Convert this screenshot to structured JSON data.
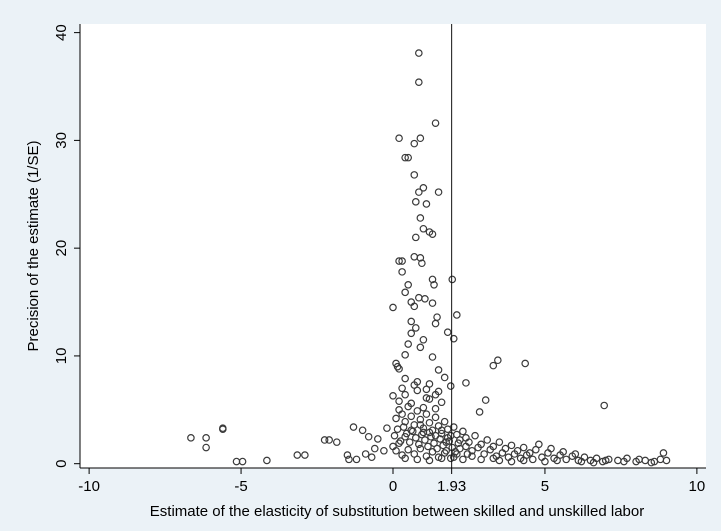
{
  "chart_data": {
    "type": "scatter",
    "xlabel": "Estimate of the elasticity of substitution between skilled and unskilled labor",
    "ylabel": "Precision of the estimate (1/SE)",
    "xlim": [
      -10.3,
      10.3
    ],
    "ylim": [
      -0.4,
      40.8
    ],
    "xticks": [
      {
        "value": -10,
        "label": "-10"
      },
      {
        "value": -5,
        "label": "-5"
      },
      {
        "value": 0,
        "label": "0"
      },
      {
        "value": 1.93,
        "label": "1.93"
      },
      {
        "value": 5,
        "label": "5"
      },
      {
        "value": 10,
        "label": "10"
      }
    ],
    "yticks": [
      {
        "value": 0,
        "label": "0"
      },
      {
        "value": 10,
        "label": "10"
      },
      {
        "value": 20,
        "label": "20"
      },
      {
        "value": 30,
        "label": "30"
      },
      {
        "value": 40,
        "label": "40"
      }
    ],
    "reference_line_x": 1.93,
    "grid": false,
    "legend": "none",
    "series": [
      {
        "marker": "hollow-circle",
        "color": "#3a3a3a",
        "points": [
          [
            0.85,
            38.1
          ],
          [
            0.85,
            35.4
          ],
          [
            1.4,
            31.6
          ],
          [
            0.2,
            30.2
          ],
          [
            0.9,
            30.2
          ],
          [
            0.7,
            29.7
          ],
          [
            0.4,
            28.4
          ],
          [
            0.5,
            28.4
          ],
          [
            0.7,
            26.8
          ],
          [
            1.0,
            25.6
          ],
          [
            1.5,
            25.2
          ],
          [
            0.85,
            25.2
          ],
          [
            0.75,
            24.3
          ],
          [
            1.1,
            24.1
          ],
          [
            0.9,
            22.8
          ],
          [
            1.0,
            21.8
          ],
          [
            1.2,
            21.5
          ],
          [
            1.3,
            21.3
          ],
          [
            0.75,
            21.0
          ],
          [
            0.3,
            18.8
          ],
          [
            0.2,
            18.8
          ],
          [
            0.7,
            19.2
          ],
          [
            0.9,
            19.1
          ],
          [
            0.95,
            18.6
          ],
          [
            0.3,
            17.8
          ],
          [
            1.3,
            17.1
          ],
          [
            1.95,
            17.1
          ],
          [
            0.5,
            16.6
          ],
          [
            1.35,
            16.6
          ],
          [
            0.4,
            15.9
          ],
          [
            0.85,
            15.4
          ],
          [
            0.6,
            15.0
          ],
          [
            1.3,
            14.9
          ],
          [
            0.7,
            14.6
          ],
          [
            0.0,
            14.5
          ],
          [
            1.05,
            15.3
          ],
          [
            1.45,
            13.6
          ],
          [
            2.1,
            13.8
          ],
          [
            0.6,
            13.2
          ],
          [
            1.4,
            13.0
          ],
          [
            0.75,
            12.6
          ],
          [
            0.6,
            12.1
          ],
          [
            1.8,
            12.2
          ],
          [
            2.0,
            11.6
          ],
          [
            1.0,
            11.5
          ],
          [
            0.5,
            11.1
          ],
          [
            0.9,
            10.8
          ],
          [
            0.4,
            10.1
          ],
          [
            1.3,
            9.9
          ],
          [
            3.45,
            9.6
          ],
          [
            3.3,
            9.1
          ],
          [
            4.35,
            9.3
          ],
          [
            0.1,
            9.3
          ],
          [
            0.15,
            9.0
          ],
          [
            0.2,
            8.8
          ],
          [
            1.5,
            8.7
          ],
          [
            1.7,
            8.0
          ],
          [
            0.4,
            7.9
          ],
          [
            0.8,
            7.6
          ],
          [
            1.2,
            7.4
          ],
          [
            1.9,
            7.2
          ],
          [
            2.4,
            7.5
          ],
          [
            6.95,
            5.4
          ],
          [
            3.05,
            5.9
          ],
          [
            2.85,
            4.8
          ],
          [
            1.4,
            6.4
          ],
          [
            1.1,
            6.1
          ],
          [
            0.0,
            6.3
          ],
          [
            -1.3,
            3.4
          ],
          [
            -2.1,
            2.2
          ],
          [
            -2.25,
            2.2
          ],
          [
            -1.0,
            3.1
          ],
          [
            -0.8,
            2.5
          ],
          [
            -0.5,
            2.3
          ],
          [
            -0.2,
            3.3
          ],
          [
            -0.6,
            1.4
          ],
          [
            -0.3,
            1.2
          ],
          [
            -0.9,
            0.9
          ],
          [
            -1.5,
            0.8
          ],
          [
            -6.65,
            2.4
          ],
          [
            -6.15,
            2.4
          ],
          [
            -6.15,
            1.5
          ],
          [
            -5.6,
            3.2
          ],
          [
            -5.6,
            3.3
          ],
          [
            -5.15,
            0.2
          ],
          [
            -4.95,
            0.2
          ],
          [
            -4.15,
            0.3
          ],
          [
            -2.9,
            0.8
          ],
          [
            -3.15,
            0.8
          ],
          [
            -1.85,
            2.0
          ],
          [
            -1.45,
            0.4
          ],
          [
            -1.2,
            0.4
          ],
          [
            -0.7,
            0.6
          ],
          [
            0.1,
            4.2
          ],
          [
            0.2,
            5.0
          ],
          [
            0.3,
            4.6
          ],
          [
            0.4,
            3.9
          ],
          [
            0.5,
            5.3
          ],
          [
            0.6,
            4.4
          ],
          [
            0.7,
            3.6
          ],
          [
            0.8,
            4.9
          ],
          [
            0.9,
            4.1
          ],
          [
            1.0,
            3.3
          ],
          [
            1.1,
            4.6
          ],
          [
            1.2,
            3.8
          ],
          [
            1.3,
            3.1
          ],
          [
            1.4,
            4.3
          ],
          [
            1.5,
            3.5
          ],
          [
            1.6,
            2.8
          ],
          [
            1.7,
            3.9
          ],
          [
            1.8,
            3.2
          ],
          [
            1.9,
            2.6
          ],
          [
            2.0,
            3.4
          ],
          [
            2.1,
            2.7
          ],
          [
            2.2,
            2.2
          ],
          [
            2.3,
            3.0
          ],
          [
            2.4,
            2.4
          ],
          [
            0.05,
            2.6
          ],
          [
            0.15,
            3.2
          ],
          [
            0.25,
            2.1
          ],
          [
            0.35,
            3.4
          ],
          [
            0.45,
            2.8
          ],
          [
            0.55,
            2.0
          ],
          [
            0.65,
            3.0
          ],
          [
            0.75,
            2.4
          ],
          [
            0.85,
            1.8
          ],
          [
            0.95,
            2.7
          ],
          [
            1.05,
            2.2
          ],
          [
            1.15,
            1.6
          ],
          [
            1.25,
            2.5
          ],
          [
            1.35,
            1.9
          ],
          [
            1.45,
            1.4
          ],
          [
            1.55,
            2.3
          ],
          [
            1.65,
            1.7
          ],
          [
            1.75,
            1.2
          ],
          [
            1.85,
            2.1
          ],
          [
            1.95,
            1.5
          ],
          [
            2.05,
            1.1
          ],
          [
            2.15,
            1.9
          ],
          [
            0.1,
            1.2
          ],
          [
            0.3,
            0.8
          ],
          [
            0.5,
            1.3
          ],
          [
            0.7,
            0.9
          ],
          [
            0.9,
            1.4
          ],
          [
            1.1,
            0.7
          ],
          [
            1.3,
            1.1
          ],
          [
            1.5,
            0.6
          ],
          [
            1.7,
            1.0
          ],
          [
            1.9,
            0.5
          ],
          [
            2.1,
            0.9
          ],
          [
            2.3,
            0.4
          ],
          [
            0.2,
            5.8
          ],
          [
            0.4,
            6.4
          ],
          [
            0.6,
            5.6
          ],
          [
            0.8,
            6.8
          ],
          [
            1.0,
            5.2
          ],
          [
            1.2,
            6.0
          ],
          [
            1.4,
            5.1
          ],
          [
            1.6,
            5.7
          ],
          [
            0.3,
            7.0
          ],
          [
            0.7,
            7.3
          ],
          [
            1.1,
            6.9
          ],
          [
            1.5,
            6.7
          ],
          [
            2.4,
            1.6
          ],
          [
            2.6,
            1.2
          ],
          [
            2.8,
            1.5
          ],
          [
            3.0,
            0.9
          ],
          [
            3.2,
            1.3
          ],
          [
            3.4,
            0.7
          ],
          [
            3.6,
            1.0
          ],
          [
            3.8,
            0.6
          ],
          [
            4.0,
            0.9
          ],
          [
            4.2,
            0.5
          ],
          [
            4.4,
            0.8
          ],
          [
            4.6,
            0.4
          ],
          [
            2.5,
            2.0
          ],
          [
            2.7,
            2.6
          ],
          [
            2.9,
            1.8
          ],
          [
            3.1,
            2.2
          ],
          [
            3.3,
            1.6
          ],
          [
            3.5,
            2.0
          ],
          [
            3.7,
            1.4
          ],
          [
            3.9,
            1.7
          ],
          [
            4.1,
            1.2
          ],
          [
            4.3,
            1.5
          ],
          [
            4.5,
            1.0
          ],
          [
            4.7,
            1.3
          ],
          [
            4.9,
            0.6
          ],
          [
            5.1,
            1.0
          ],
          [
            5.3,
            0.5
          ],
          [
            5.5,
            0.8
          ],
          [
            5.7,
            0.4
          ],
          [
            5.9,
            0.7
          ],
          [
            6.1,
            0.3
          ],
          [
            6.3,
            0.6
          ],
          [
            6.5,
            0.3
          ],
          [
            6.7,
            0.5
          ],
          [
            6.9,
            0.2
          ],
          [
            7.1,
            0.4
          ],
          [
            4.8,
            1.8
          ],
          [
            5.2,
            1.4
          ],
          [
            5.6,
            1.1
          ],
          [
            6.0,
            0.9
          ],
          [
            7.4,
            0.3
          ],
          [
            7.7,
            0.5
          ],
          [
            8.0,
            0.2
          ],
          [
            8.3,
            0.3
          ],
          [
            8.6,
            0.2
          ],
          [
            8.9,
            1.0
          ],
          [
            8.8,
            0.4
          ],
          [
            9.0,
            0.3
          ],
          [
            7.6,
            0.2
          ],
          [
            8.1,
            0.4
          ],
          [
            8.5,
            0.1
          ],
          [
            5.0,
            0.2
          ],
          [
            5.4,
            0.3
          ],
          [
            6.2,
            0.2
          ],
          [
            6.6,
            0.1
          ],
          [
            7.0,
            0.3
          ],
          [
            1.2,
            2.9
          ],
          [
            1.4,
            2.6
          ],
          [
            1.6,
            3.1
          ],
          [
            1.8,
            2.4
          ],
          [
            0.9,
            3.6
          ],
          [
            1.0,
            2.9
          ],
          [
            0.6,
            3.1
          ],
          [
            0.4,
            2.5
          ],
          [
            0.2,
            1.9
          ],
          [
            0.0,
            1.6
          ],
          [
            1.75,
            2.0
          ],
          [
            2.2,
            1.4
          ],
          [
            2.45,
            0.9
          ],
          [
            2.0,
            0.6
          ],
          [
            1.6,
            0.5
          ],
          [
            1.2,
            0.3
          ],
          [
            0.8,
            0.4
          ],
          [
            0.4,
            0.5
          ],
          [
            2.6,
            0.7
          ],
          [
            2.9,
            0.4
          ],
          [
            3.3,
            0.5
          ],
          [
            3.5,
            0.3
          ],
          [
            3.9,
            0.2
          ],
          [
            4.3,
            0.3
          ]
        ]
      }
    ]
  }
}
